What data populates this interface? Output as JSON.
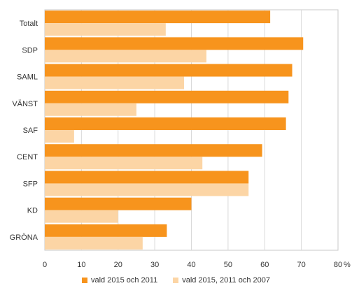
{
  "chart_data": {
    "type": "bar",
    "orientation": "horizontal",
    "categories": [
      "Totalt",
      "SDP",
      "SAML",
      "VÄNST",
      "SAF",
      "CENT",
      "SFP",
      "KD",
      "GRÖNA"
    ],
    "series": [
      {
        "name": "vald 2015 och 2011",
        "color": "#f7941d",
        "values": [
          61.5,
          70.5,
          67.5,
          66.5,
          65.8,
          59.3,
          55.6,
          40.0,
          33.3
        ]
      },
      {
        "name": "vald 2015, 2011 och 2007",
        "color": "#fcd5a5",
        "values": [
          33.0,
          44.1,
          38.0,
          25.0,
          8.0,
          43.0,
          55.6,
          20.0,
          26.7
        ]
      }
    ],
    "xlim": [
      0,
      80
    ],
    "xticks": [
      0,
      10,
      20,
      30,
      40,
      50,
      60,
      70,
      80
    ],
    "xunit": "%",
    "grid": true,
    "legend_position": "bottom"
  }
}
